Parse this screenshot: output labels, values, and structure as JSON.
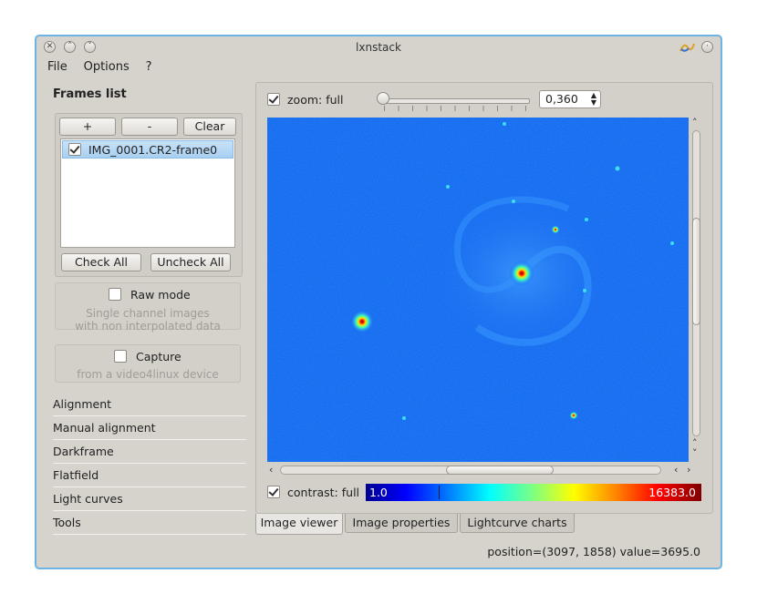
{
  "window": {
    "title": "lxnstack"
  },
  "menu": {
    "items": [
      "File",
      "Options",
      "?"
    ]
  },
  "sidebar": {
    "title": "Frames list",
    "buttons": {
      "add": "+",
      "remove": "-",
      "clear": "Clear",
      "check_all": "Check All",
      "uncheck_all": "Uncheck All"
    },
    "frames": [
      {
        "name": "IMG_0001.CR2-frame0",
        "checked": true
      }
    ],
    "raw_mode": {
      "label": "Raw mode",
      "hint_line1": "Single channel images",
      "hint_line2": "with non interpolated data",
      "checked": false
    },
    "capture": {
      "label": "Capture",
      "hint": "from a video4linux device",
      "checked": false
    },
    "toolbox": [
      "Alignment",
      "Manual alignment",
      "Darkframe",
      "Flatfield",
      "Light curves",
      "Tools"
    ]
  },
  "viewer": {
    "zoom_label": "zoom: full",
    "zoom_checked": true,
    "zoom_value": "0,360",
    "zoom_slider_fraction": 0.0,
    "contrast_label": "contrast: full",
    "contrast_checked": true,
    "colorbar_min": "1.0",
    "colorbar_max": "16383.0",
    "colorbar_marker_value": 3695.0,
    "colors": {
      "background": "#1460ee",
      "hot": "#ff0000",
      "mid": "#ffff00"
    }
  },
  "tabs": [
    "Image viewer",
    "Image properties",
    "Lightcurve charts"
  ],
  "active_tab": "Image viewer",
  "status": "position=(3097, 1858) value=3695.0"
}
